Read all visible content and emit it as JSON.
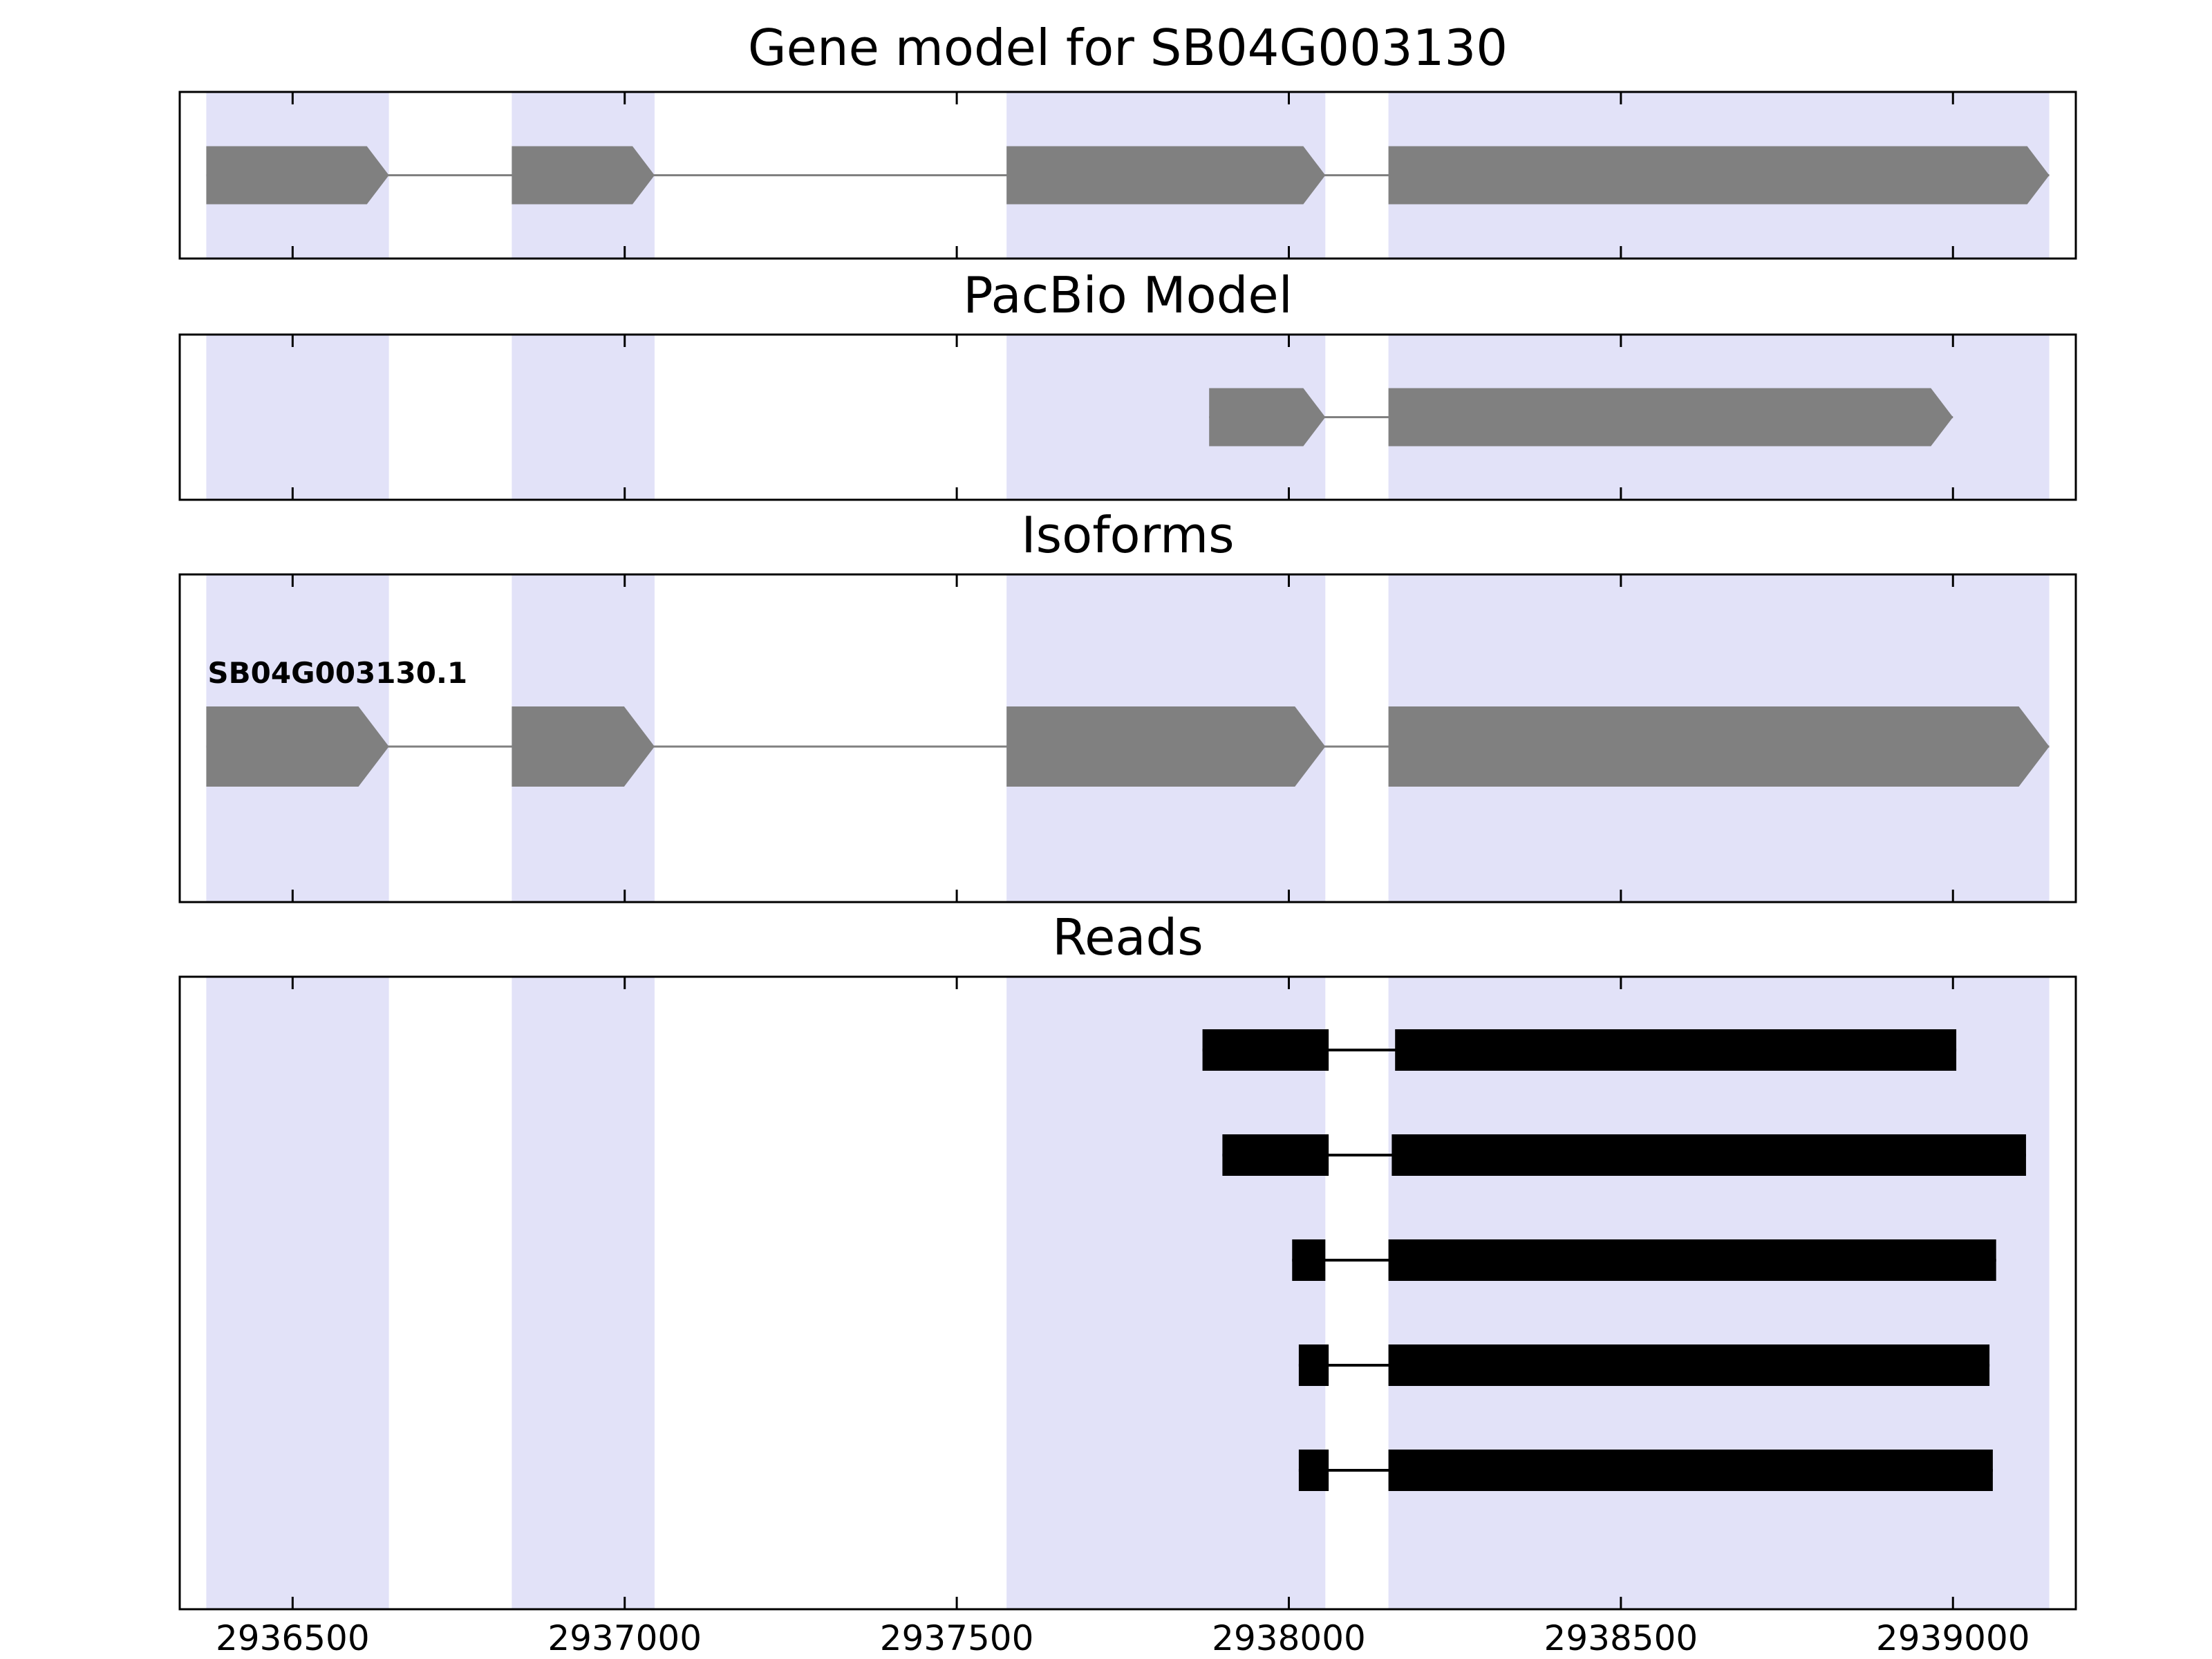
{
  "figure": {
    "background_color": "#ffffff",
    "highlight_color": "#e2e2f8",
    "border_color": "#000000",
    "gene_color": "#808080",
    "read_color": "#000000"
  },
  "chart_data": {
    "type": "gene-structure-tracks",
    "xlim": [
      2936330,
      2939185
    ],
    "xticks": [
      2936500,
      2937000,
      2937500,
      2938000,
      2938500,
      2939000
    ],
    "xtick_labels": [
      "2936500",
      "2937000",
      "2937500",
      "2938000",
      "2938500",
      "2939000"
    ],
    "highlight_regions": [
      [
        2936370,
        2936645
      ],
      [
        2936830,
        2937045
      ],
      [
        2937575,
        2938055
      ],
      [
        2938150,
        2939145
      ]
    ],
    "tracks": [
      {
        "id": "gene_model",
        "title": "Gene model for SB04G003130",
        "features": [
          {
            "kind": "transcript",
            "color": "#808080",
            "strand": "right",
            "exons": [
              [
                2936370,
                2936645
              ],
              [
                2936830,
                2937045
              ],
              [
                2937575,
                2938055
              ],
              [
                2938150,
                2939145
              ]
            ]
          }
        ]
      },
      {
        "id": "pacbio_model",
        "title": "PacBio Model",
        "features": [
          {
            "kind": "transcript",
            "color": "#808080",
            "strand": "right",
            "exons": [
              [
                2937880,
                2938055
              ],
              [
                2938150,
                2939000
              ]
            ]
          }
        ]
      },
      {
        "id": "isoforms",
        "title": "Isoforms",
        "features": [
          {
            "kind": "transcript",
            "label": "SB04G003130.1",
            "color": "#808080",
            "strand": "right",
            "exons": [
              [
                2936370,
                2936645
              ],
              [
                2936830,
                2937045
              ],
              [
                2937575,
                2938055
              ],
              [
                2938150,
                2939145
              ]
            ]
          }
        ]
      },
      {
        "id": "reads",
        "title": "Reads",
        "features": [
          {
            "kind": "read",
            "color": "#000000",
            "exons": [
              [
                2937870,
                2938060
              ],
              [
                2938160,
                2939005
              ]
            ]
          },
          {
            "kind": "read",
            "color": "#000000",
            "exons": [
              [
                2937900,
                2938060
              ],
              [
                2938155,
                2939110
              ]
            ]
          },
          {
            "kind": "read",
            "color": "#000000",
            "exons": [
              [
                2938005,
                2938055
              ],
              [
                2938150,
                2939065
              ]
            ]
          },
          {
            "kind": "read",
            "color": "#000000",
            "exons": [
              [
                2938015,
                2938060
              ],
              [
                2938150,
                2939055
              ]
            ]
          },
          {
            "kind": "read",
            "color": "#000000",
            "exons": [
              [
                2938015,
                2938060
              ],
              [
                2938150,
                2939060
              ]
            ]
          }
        ]
      }
    ]
  }
}
